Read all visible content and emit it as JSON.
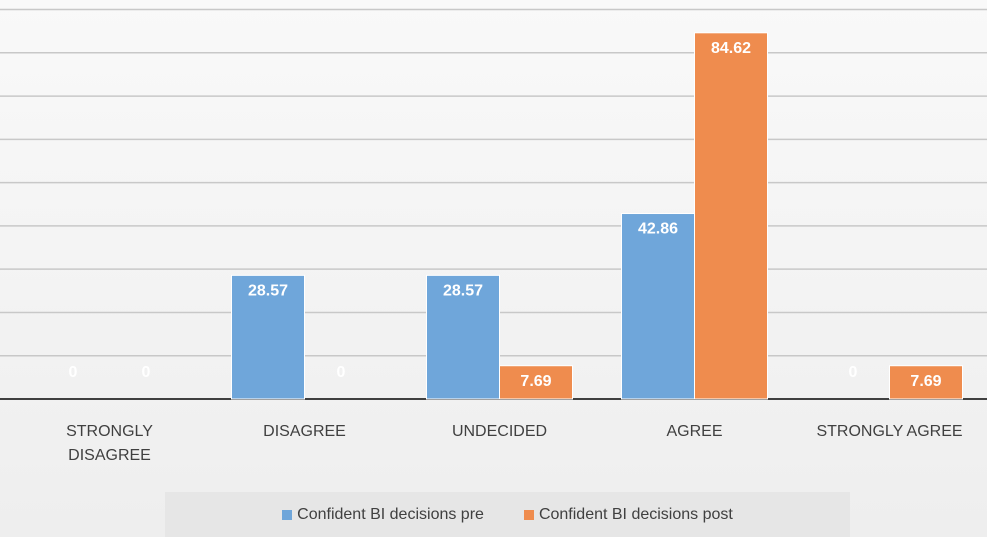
{
  "chart_data": {
    "type": "bar",
    "categories": [
      "STRONGLY DISAGREE",
      "DISAGREE",
      "UNDECIDED",
      "AGREE",
      "STRONGLY AGREE"
    ],
    "series": [
      {
        "name": "Confident BI decisions pre",
        "color": "#6fa6da",
        "values": [
          0,
          28.57,
          28.57,
          42.86,
          0
        ]
      },
      {
        "name": "Confident BI decisions post",
        "color": "#ef8c4e",
        "values": [
          0,
          0,
          7.69,
          84.62,
          7.69
        ]
      }
    ],
    "ylim": [
      0,
      92.2
    ],
    "yticks": [
      0,
      10,
      20,
      30,
      40,
      50,
      60,
      70,
      80,
      90
    ],
    "grid": true
  }
}
